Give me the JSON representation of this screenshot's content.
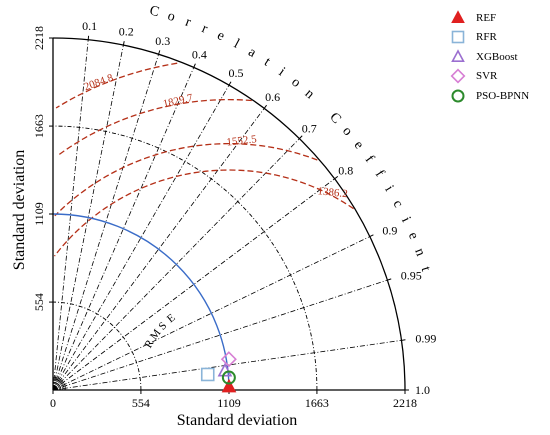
{
  "chart_data": {
    "type": "taylor-diagram",
    "xlabel": "Standard deviation",
    "ylabel": "Standard deviation",
    "std_max": 2218,
    "std_ticks": [
      0,
      554,
      1109,
      1663,
      2218
    ],
    "std_tick_labels": [
      "0",
      "554",
      "1109",
      "1663",
      "2218"
    ],
    "correlation_title": "Correlation Coefficient",
    "correlation_ticks": [
      0.1,
      0.2,
      0.3,
      0.4,
      0.5,
      0.6,
      0.7,
      0.8,
      0.9,
      0.95,
      0.99,
      1.0
    ],
    "correlation_tick_labels": [
      "0.1",
      "0.2",
      "0.3",
      "0.4",
      "0.5",
      "0.6",
      "0.7",
      "0.8",
      "0.9",
      "0.95",
      "0.99",
      "1.0"
    ],
    "rmse_label": "RMSE",
    "rmse_contours": [
      {
        "value": 1386.2,
        "label": "1386.2"
      },
      {
        "value": 1552.5,
        "label": "1552.5"
      },
      {
        "value": 1829.7,
        "label": "1829.7"
      },
      {
        "value": 2084.8,
        "label": "2084.8"
      }
    ],
    "reference_std": 1109,
    "series": [
      {
        "name": "REF",
        "std": 1109,
        "corr": 1.0,
        "marker": "triangle",
        "color": "#e02020",
        "filled": true
      },
      {
        "name": "RFR",
        "std": 980,
        "corr": 0.995,
        "marker": "square",
        "color": "#8ab4d8",
        "filled": false
      },
      {
        "name": "XGBoost",
        "std": 1090,
        "corr": 0.994,
        "marker": "triangle",
        "color": "#9b6fd0",
        "filled": false
      },
      {
        "name": "SVR",
        "std": 1125,
        "corr": 0.985,
        "marker": "diamond",
        "color": "#d77fd4",
        "filled": false
      },
      {
        "name": "PSO-BPNN",
        "std": 1111,
        "corr": 0.9975,
        "marker": "circle",
        "color": "#2c8a2c",
        "filled": false
      }
    ],
    "colors": {
      "rmse_contour": "#b53018",
      "ref_arc": "#3a6cc8",
      "axis": "#000000"
    }
  }
}
